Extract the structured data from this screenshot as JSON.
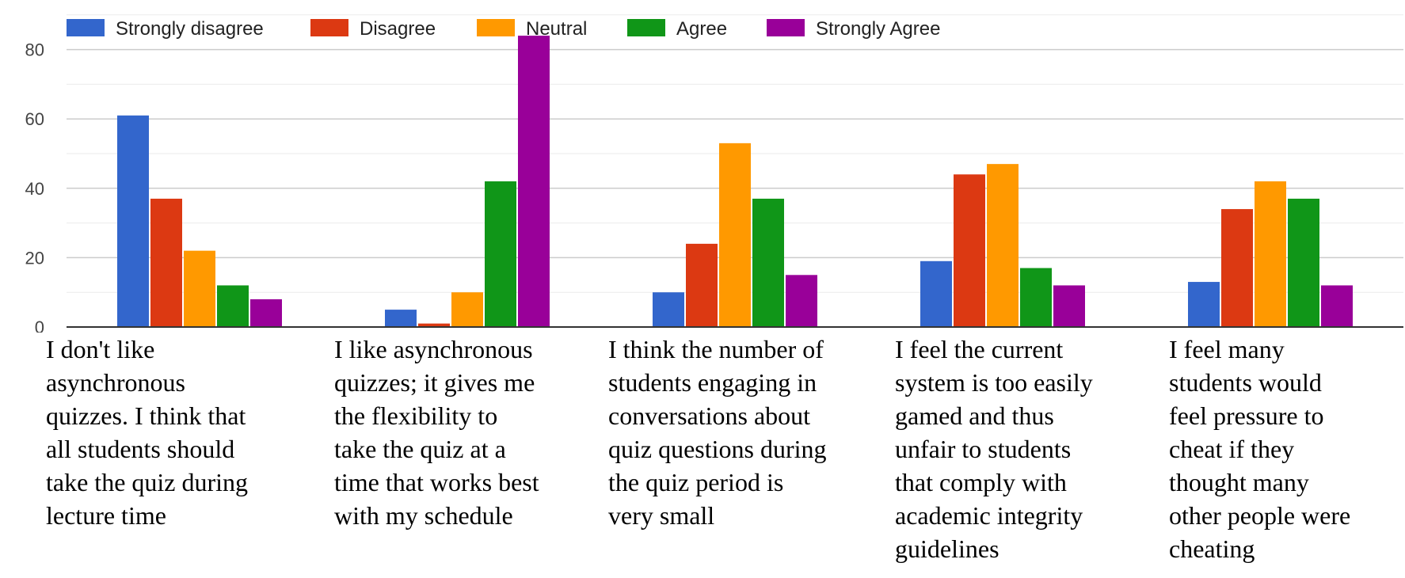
{
  "chart_data": {
    "type": "bar",
    "categories": [
      "I don't like\nasynchronous\nquizzes. I think that\nall students should\ntake the quiz during\nlecture time",
      "I like asynchronous\nquizzes; it gives me\nthe flexibility to\ntake the quiz at a\ntime that works best\nwith my schedule",
      "I think the number of\nstudents engaging in\nconversations about\nquiz questions during\nthe quiz period is\nvery small",
      "I feel the current\nsystem is too easily\ngamed and thus\nunfair to students\nthat comply with\nacademic integrity\nguidelines",
      "I feel many\nstudents would\nfeel pressure to\ncheat if they\nthought many\nother people were\ncheating"
    ],
    "series": [
      {
        "name": "Strongly disagree",
        "color": "#3366cc",
        "values": [
          61,
          5,
          10,
          19,
          13
        ]
      },
      {
        "name": "Disagree",
        "color": "#dc3912",
        "values": [
          37,
          1,
          24,
          44,
          34
        ]
      },
      {
        "name": "Neutral",
        "color": "#ff9900",
        "values": [
          22,
          10,
          53,
          47,
          42
        ]
      },
      {
        "name": "Agree",
        "color": "#109618",
        "values": [
          12,
          42,
          37,
          17,
          37
        ]
      },
      {
        "name": "Strongly Agree",
        "color": "#990099",
        "values": [
          8,
          84,
          15,
          12,
          12
        ]
      }
    ],
    "yticks": [
      0,
      20,
      40,
      60,
      80
    ],
    "ylim": [
      0,
      80
    ],
    "grid": true,
    "legend_position": "top-left"
  }
}
